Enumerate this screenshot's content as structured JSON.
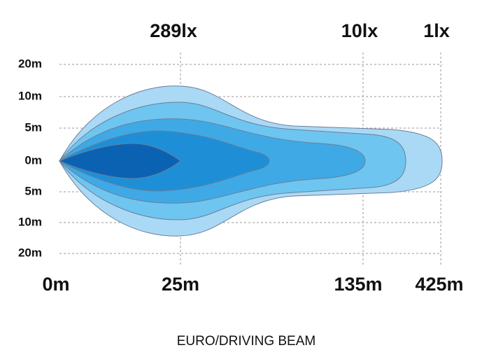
{
  "top_labels": [
    "289lx",
    "10lx",
    "1lx"
  ],
  "y_labels": [
    "20m",
    "10m",
    "5m",
    "0m",
    "5m",
    "10m",
    "20m"
  ],
  "x_labels": [
    "0m",
    "25m",
    "135m",
    "425m"
  ],
  "caption": "EURO/DRIVING BEAM"
}
